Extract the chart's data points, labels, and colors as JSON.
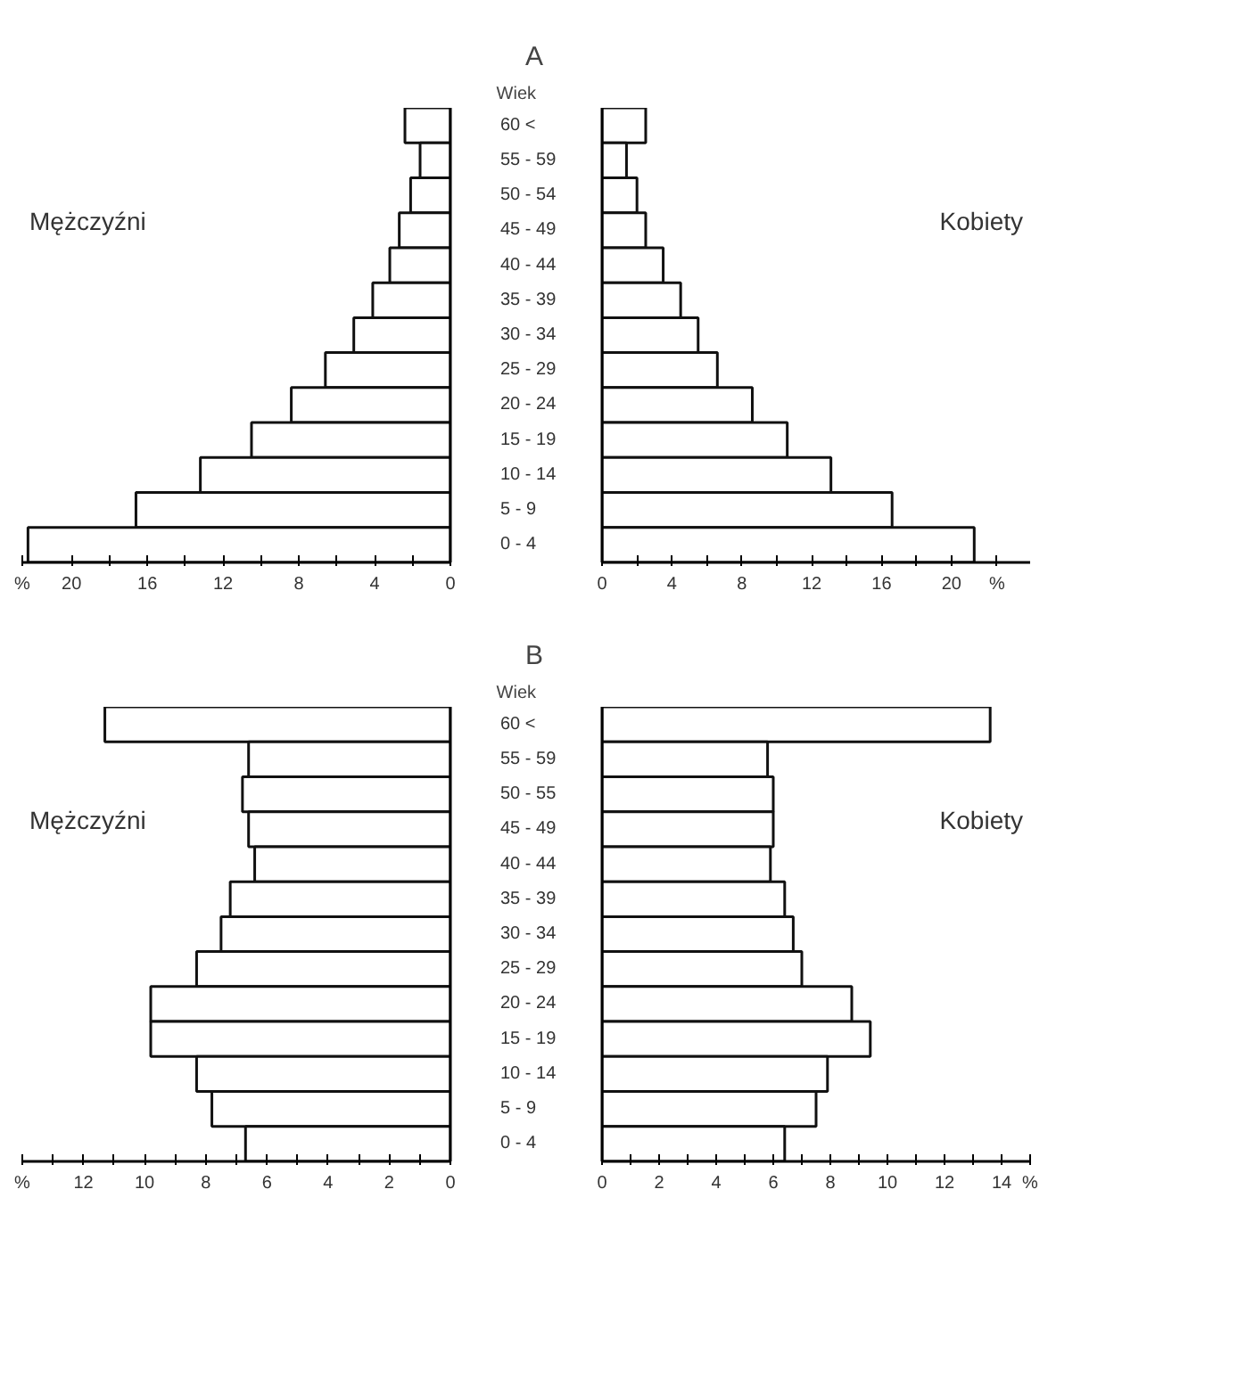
{
  "chart_data": [
    {
      "type": "bar",
      "orientation": "horizontal",
      "title": "A",
      "ylabel": "Wiek",
      "annotations": [
        "Mężczyźni"
      ],
      "color": "#ffffff",
      "categories": [
        "60 <",
        "55 - 59",
        "50 - 54",
        "45 - 49",
        "40 - 44",
        "35 - 39",
        "30 - 34",
        "25 - 29",
        "20 - 24",
        "15 - 19",
        "10 - 14",
        "5 - 9",
        "0 - 4"
      ],
      "values": [
        2.4,
        1.6,
        2.1,
        2.7,
        3.2,
        4.1,
        5.1,
        6.6,
        8.4,
        10.5,
        13.2,
        16.6,
        22.3
      ],
      "xlim": [
        22.6,
        0
      ],
      "xticks": [
        {
          "value": 22.6,
          "label": "%"
        },
        20,
        {
          "value": 18,
          "label": null
        },
        16,
        {
          "value": 14,
          "label": null
        },
        12,
        {
          "value": 10,
          "label": null
        },
        8,
        {
          "value": 6,
          "label": null
        },
        4,
        {
          "value": 2,
          "label": null
        },
        0
      ]
    },
    {
      "type": "bar",
      "orientation": "horizontal",
      "annotations": [
        "Kobiety"
      ],
      "color": "#ffffff",
      "categories": [
        null,
        null,
        null,
        null,
        null,
        null,
        null,
        null,
        null,
        null,
        null,
        null,
        null
      ],
      "values": [
        2.5,
        1.4,
        2.0,
        2.5,
        3.5,
        4.5,
        5.5,
        6.6,
        8.6,
        10.6,
        13.1,
        16.6,
        21.3
      ],
      "xlim": [
        0,
        24.5
      ],
      "xticks": [
        0,
        {
          "value": 2,
          "label": null
        },
        4,
        {
          "value": 6,
          "label": null
        },
        8,
        {
          "value": 10,
          "label": null
        },
        12,
        {
          "value": 14,
          "label": null
        },
        16,
        {
          "value": 18,
          "label": null
        },
        20,
        {
          "value": 22.6,
          "label": "%"
        }
      ]
    },
    {
      "type": "bar",
      "orientation": "horizontal",
      "title": "B",
      "ylabel": "Wiek",
      "annotations": [
        "Mężczyźni"
      ],
      "color": "#ffffff",
      "categories": [
        "60 <",
        "55 - 59",
        "50 - 55",
        "45 - 49",
        "40 - 44",
        "35 - 39",
        "30 - 34",
        "25 - 29",
        "20 - 24",
        "15 - 19",
        "10 - 14",
        "5 - 9",
        "0 - 4"
      ],
      "values": [
        11.3,
        6.6,
        6.8,
        6.6,
        6.4,
        7.2,
        7.5,
        8.3,
        9.8,
        9.8,
        8.3,
        7.8,
        6.7
      ],
      "xlim": [
        14,
        0
      ],
      "xticks": [
        {
          "value": 14,
          "label": "%"
        },
        {
          "value": 13,
          "label": null
        },
        12,
        {
          "value": 11,
          "label": null
        },
        10,
        {
          "value": 9,
          "label": null
        },
        8,
        {
          "value": 7,
          "label": null
        },
        6,
        {
          "value": 5,
          "label": null
        },
        4,
        {
          "value": 3,
          "label": null
        },
        2,
        {
          "value": 1,
          "label": null
        },
        0
      ]
    },
    {
      "type": "bar",
      "orientation": "horizontal",
      "annotations": [
        "Kobiety"
      ],
      "color": "#ffffff",
      "categories": [
        null,
        null,
        null,
        null,
        null,
        null,
        null,
        null,
        null,
        null,
        null,
        null,
        null
      ],
      "values": [
        13.6,
        5.8,
        6.0,
        6.0,
        5.9,
        6.4,
        6.7,
        7.0,
        8.75,
        9.4,
        7.9,
        7.5,
        6.4
      ],
      "xlim": [
        0,
        15
      ],
      "xticks": [
        0,
        {
          "value": 1,
          "label": null
        },
        2,
        {
          "value": 3,
          "label": null
        },
        4,
        {
          "value": 5,
          "label": null
        },
        6,
        {
          "value": 7,
          "label": null
        },
        8,
        {
          "value": 9,
          "label": null
        },
        10,
        {
          "value": 11,
          "label": null
        },
        12,
        {
          "value": 13,
          "label": null
        },
        14,
        {
          "value": 15,
          "label": "%"
        }
      ]
    }
  ]
}
